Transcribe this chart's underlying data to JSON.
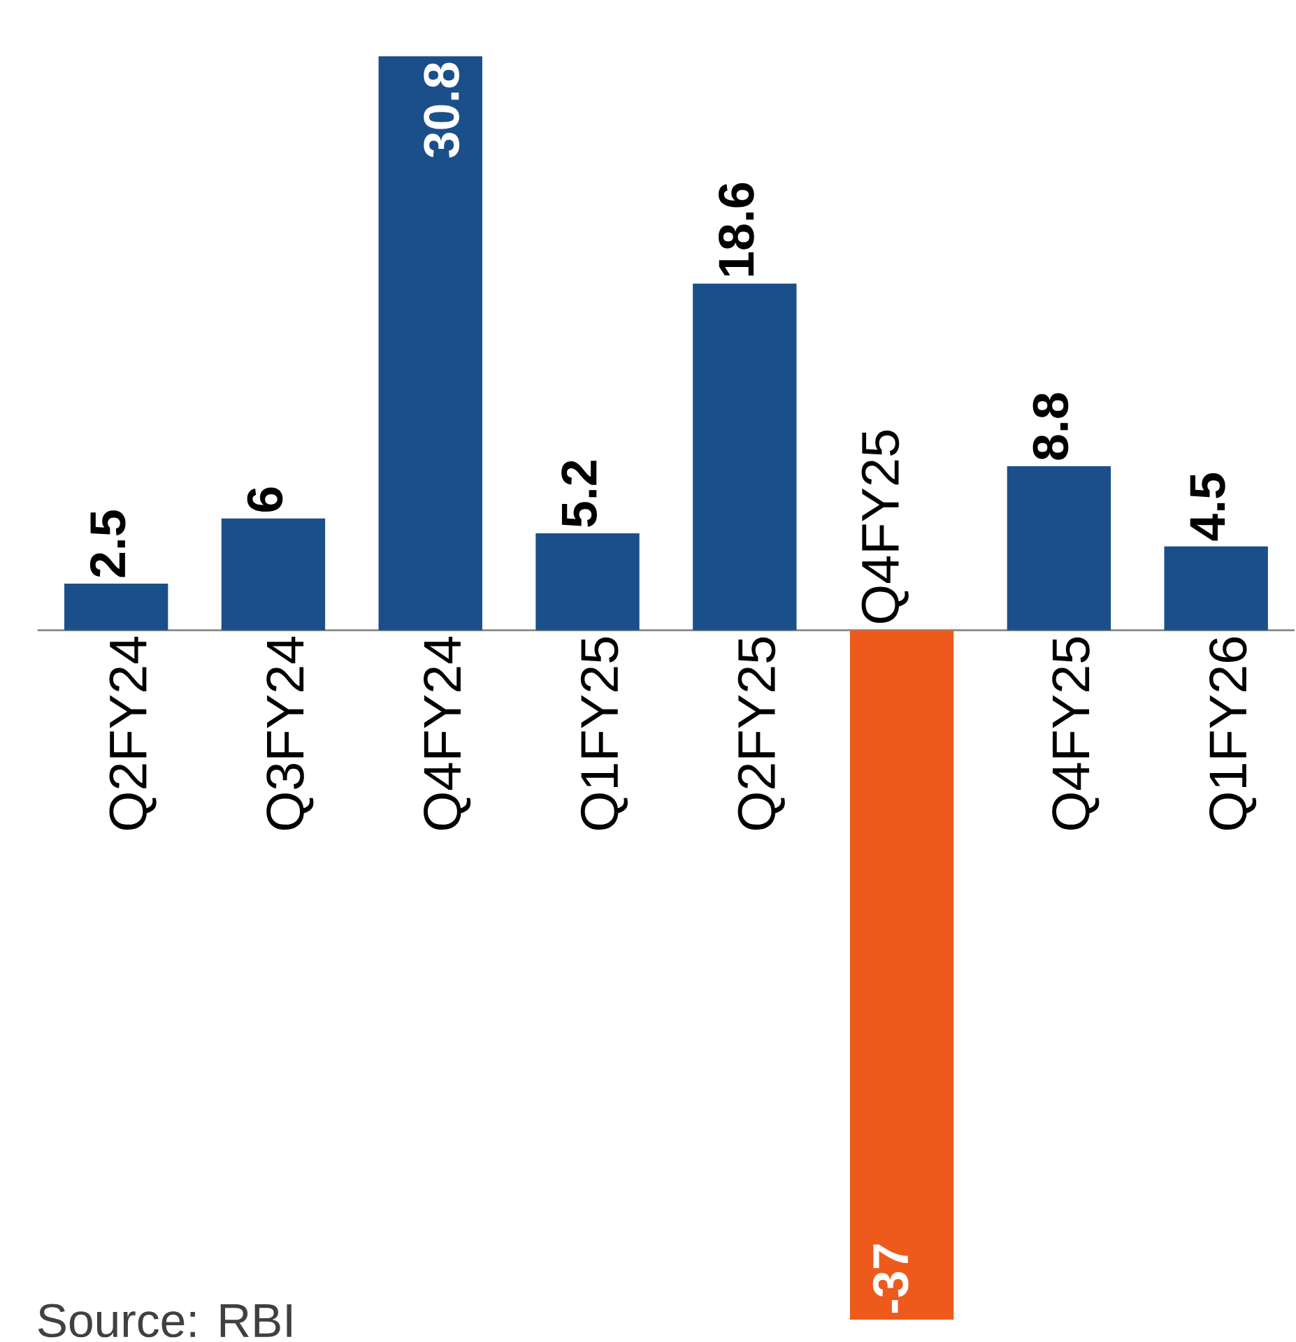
{
  "chart_data": {
    "type": "bar",
    "categories": [
      "Q2FY24",
      "Q3FY24",
      "Q4FY24",
      "Q1FY25",
      "Q2FY25",
      "Q4FY25",
      "Q4FY25",
      "Q1FY26"
    ],
    "values": [
      2.5,
      6,
      30.8,
      5.2,
      18.6,
      -37,
      8.8,
      4.5
    ],
    "colors": [
      "#1b4f8a",
      "#1b4f8a",
      "#1b4f8a",
      "#1b4f8a",
      "#1b4f8a",
      "#ee5a1c",
      "#1b4f8a",
      "#1b4f8a"
    ],
    "data_labels": true,
    "annotations": [
      "Source: RBI"
    ]
  }
}
